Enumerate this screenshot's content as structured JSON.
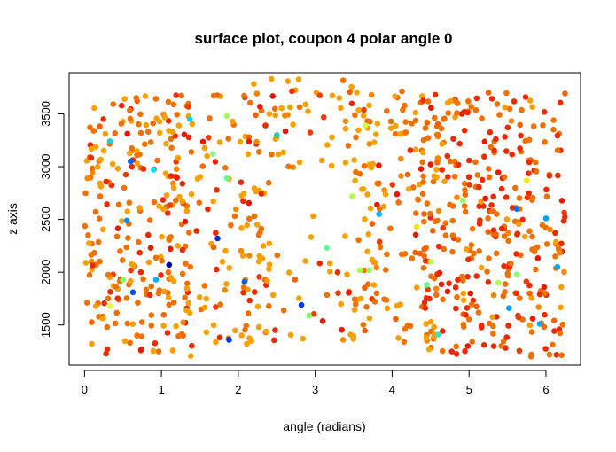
{
  "chart_data": {
    "type": "scatter",
    "title": "surface plot, coupon 4 polar angle 0",
    "xlabel": "angle (radians)",
    "ylabel": "z axis",
    "xlim": [
      -0.2,
      6.45
    ],
    "ylim": [
      1120,
      3890
    ],
    "x_ticks": [
      0,
      1,
      2,
      3,
      4,
      5,
      6
    ],
    "y_ticks": [
      1500,
      2000,
      2500,
      3000,
      3500
    ],
    "grid": false,
    "legend": "none",
    "colors": {
      "palette": [
        "#0000cc",
        "#005fff",
        "#00c8ff",
        "#7cff7c",
        "#f2e600",
        "#ffb000",
        "#f58800",
        "#f26200",
        "#ef3a00",
        "#e81800"
      ],
      "bulk_orange": "#f07000",
      "warm_orange": "#f8a000",
      "hot_red": "#ec2a00"
    },
    "highlighted_points": [
      {
        "x": 0.33,
        "y": 3240,
        "color": "#20d0d0"
      },
      {
        "x": 0.6,
        "y": 3050,
        "color": "#005fff"
      },
      {
        "x": 0.9,
        "y": 2970,
        "color": "#00e0ff"
      },
      {
        "x": 0.55,
        "y": 2490,
        "color": "#0090ff"
      },
      {
        "x": 1.1,
        "y": 2070,
        "color": "#0000aa"
      },
      {
        "x": 0.93,
        "y": 1930,
        "color": "#00b0ff"
      },
      {
        "x": 0.5,
        "y": 1930,
        "color": "#90ff60"
      },
      {
        "x": 0.63,
        "y": 1810,
        "color": "#0050ff"
      },
      {
        "x": 0.33,
        "y": 1680,
        "color": "#e0ff40"
      },
      {
        "x": 1.37,
        "y": 3450,
        "color": "#00d8ff"
      },
      {
        "x": 1.85,
        "y": 3480,
        "color": "#a0ff60"
      },
      {
        "x": 1.67,
        "y": 3120,
        "color": "#80ff80"
      },
      {
        "x": 1.85,
        "y": 2890,
        "color": "#60ff90"
      },
      {
        "x": 1.73,
        "y": 2320,
        "color": "#0030cc"
      },
      {
        "x": 2.08,
        "y": 1910,
        "color": "#0060ff"
      },
      {
        "x": 1.88,
        "y": 1360,
        "color": "#0030dd"
      },
      {
        "x": 2.5,
        "y": 3300,
        "color": "#20d0c0"
      },
      {
        "x": 2.82,
        "y": 1690,
        "color": "#0040dd"
      },
      {
        "x": 2.92,
        "y": 1590,
        "color": "#80ff60"
      },
      {
        "x": 3.15,
        "y": 2230,
        "color": "#60ff90"
      },
      {
        "x": 3.48,
        "y": 2720,
        "color": "#b0ff50"
      },
      {
        "x": 3.58,
        "y": 2020,
        "color": "#a0ff50"
      },
      {
        "x": 3.7,
        "y": 2020,
        "color": "#90ff60"
      },
      {
        "x": 3.83,
        "y": 2550,
        "color": "#00b0ff"
      },
      {
        "x": 3.65,
        "y": 3390,
        "color": "#d0ff40"
      },
      {
        "x": 4.32,
        "y": 2430,
        "color": "#f0e800"
      },
      {
        "x": 4.5,
        "y": 2100,
        "color": "#c0ff40"
      },
      {
        "x": 4.45,
        "y": 1880,
        "color": "#60ff90"
      },
      {
        "x": 4.6,
        "y": 1410,
        "color": "#40e0c0"
      },
      {
        "x": 4.92,
        "y": 2680,
        "color": "#90ff60"
      },
      {
        "x": 5.38,
        "y": 1900,
        "color": "#b0ff50"
      },
      {
        "x": 5.52,
        "y": 1660,
        "color": "#00a0ff"
      },
      {
        "x": 5.62,
        "y": 2600,
        "color": "#0070ff"
      },
      {
        "x": 5.62,
        "y": 1980,
        "color": "#90ff70"
      },
      {
        "x": 5.75,
        "y": 2870,
        "color": "#f0f000"
      },
      {
        "x": 5.92,
        "y": 1510,
        "color": "#00b0ff"
      },
      {
        "x": 6.0,
        "y": 2510,
        "color": "#00a0ff"
      },
      {
        "x": 6.15,
        "y": 2050,
        "color": "#00b0ff"
      }
    ],
    "density_regions": [
      {
        "x_range": [
          0.0,
          1.4
        ],
        "y_range": [
          1200,
          3680
        ],
        "count": 230,
        "color_weights": [
          0.55,
          0.3,
          0.15
        ]
      },
      {
        "x_range": [
          1.0,
          2.5
        ],
        "y_range": [
          1300,
          3720
        ],
        "count": 140,
        "color_weights": [
          0.3,
          0.55,
          0.15
        ]
      },
      {
        "x_range": [
          2.2,
          3.8
        ],
        "y_range": [
          1330,
          3850
        ],
        "count": 150,
        "color_weights": [
          0.25,
          0.7,
          0.05
        ]
      },
      {
        "x_range": [
          3.5,
          4.6
        ],
        "y_range": [
          1330,
          3720
        ],
        "count": 130,
        "color_weights": [
          0.55,
          0.4,
          0.05
        ]
      },
      {
        "x_range": [
          4.4,
          6.25
        ],
        "y_range": [
          1200,
          3720
        ],
        "count": 340,
        "color_weights": [
          0.5,
          0.1,
          0.4
        ]
      }
    ],
    "random_seed": 4
  }
}
